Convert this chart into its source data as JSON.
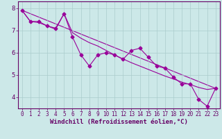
{
  "background_color": "#cce8e8",
  "line_color": "#990099",
  "grid_color": "#aacccc",
  "spine_color": "#660066",
  "tick_color": "#660066",
  "label_color": "#660066",
  "xlim": [
    -0.5,
    23.5
  ],
  "ylim": [
    3.5,
    8.3
  ],
  "yticks": [
    4,
    5,
    6,
    7,
    8
  ],
  "xticks": [
    0,
    1,
    2,
    3,
    4,
    5,
    6,
    7,
    8,
    9,
    10,
    11,
    12,
    13,
    14,
    15,
    16,
    17,
    18,
    19,
    20,
    21,
    22,
    23
  ],
  "xlabel": "Windchill (Refroidissement éolien,°C)",
  "series1_x": [
    0,
    1,
    2,
    3,
    4,
    5,
    6,
    7,
    8,
    9,
    10,
    11,
    12,
    13,
    14,
    15,
    16,
    17,
    18,
    19,
    20,
    21,
    22,
    23
  ],
  "series1_y": [
    7.9,
    7.4,
    7.4,
    7.2,
    7.1,
    7.75,
    6.7,
    5.9,
    5.4,
    5.9,
    6.0,
    5.9,
    5.7,
    6.1,
    6.2,
    5.8,
    5.4,
    5.3,
    4.9,
    4.6,
    4.6,
    3.9,
    3.6,
    4.4
  ],
  "series2_x": [
    0,
    1,
    2,
    3,
    4,
    5,
    6,
    7,
    8,
    9,
    10,
    11,
    12,
    13,
    14,
    15,
    16,
    17,
    18,
    19,
    20,
    21,
    22,
    23
  ],
  "series2_y": [
    7.9,
    7.4,
    7.35,
    7.2,
    7.05,
    7.75,
    6.9,
    6.65,
    6.45,
    6.3,
    6.1,
    5.9,
    5.72,
    5.55,
    5.4,
    5.25,
    5.1,
    4.95,
    4.82,
    4.68,
    4.57,
    4.44,
    4.35,
    4.4
  ],
  "series3_x": [
    0,
    23
  ],
  "series3_y": [
    7.9,
    4.4
  ],
  "marker_size": 2.5,
  "line_width": 0.8,
  "tick_fontsize": 5.5,
  "label_fontsize": 6.5
}
